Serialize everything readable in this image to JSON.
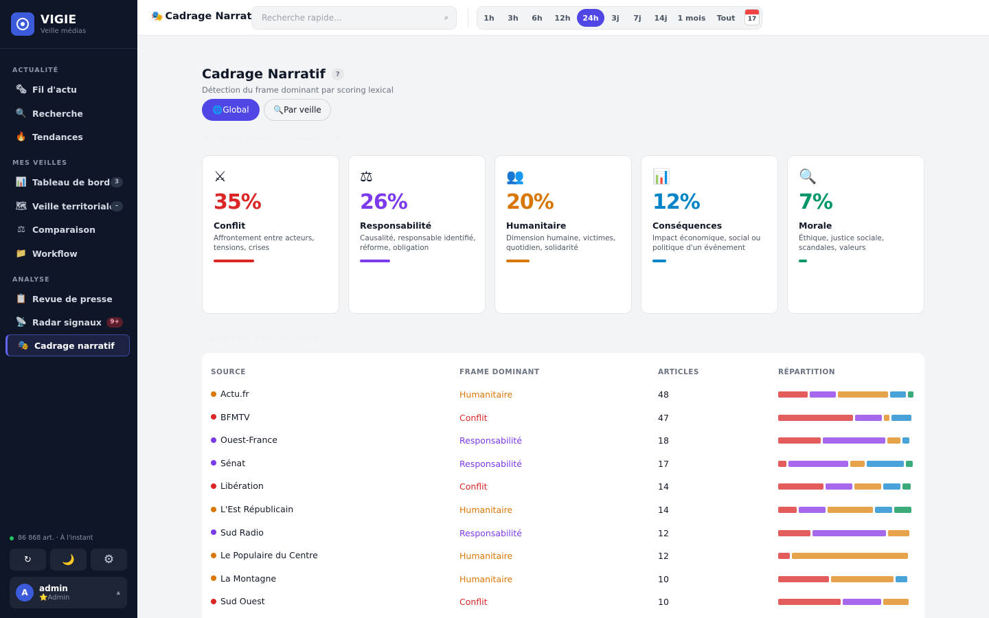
{
  "app": {
    "name": "VIGIE",
    "tagline": "Veille médias"
  },
  "sidebar": {
    "sections": [
      "ACTUALITÉ",
      "MES VEILLES",
      "ANALYSE"
    ],
    "items": [
      {
        "label": "Fil d'actu",
        "icon": "🗞"
      },
      {
        "label": "Recherche",
        "icon": "🔍"
      },
      {
        "label": "Tendances",
        "icon": "🔥"
      },
      {
        "label": "Tableau de bord",
        "icon": "📊",
        "badge": "3"
      },
      {
        "label": "Veille territoriale",
        "icon": "🗺",
        "badge": "–"
      },
      {
        "label": "Comparaison",
        "icon": "⚖"
      },
      {
        "label": "Workflow",
        "icon": "📁"
      },
      {
        "label": "Revue de presse",
        "icon": "📋"
      },
      {
        "label": "Radar signaux",
        "icon": "📡",
        "badge": "9+"
      },
      {
        "label": "Cadrage narratif",
        "icon": "🎭"
      }
    ],
    "status": "86 868 art. · À l'instant",
    "buttons": {
      "refresh": "↻",
      "theme": "🌙",
      "settings": "⚙"
    },
    "user": {
      "initial": "A",
      "name": "admin",
      "role": "⭐Admin"
    }
  },
  "topbar": {
    "title": "Cadrage Narratif",
    "search_placeholder": "Recherche rapide...",
    "periods": [
      "1h",
      "3h",
      "6h",
      "12h",
      "24h",
      "3j",
      "7j",
      "14j",
      "1 mois",
      "Tout"
    ],
    "active_period": "24h",
    "calendar_day": "17"
  },
  "page": {
    "title": "Cadrage Narratif",
    "help": "?",
    "subtitle": "Détection du frame dominant par scoring lexical",
    "mode_global": "🌐Global",
    "mode_veille": "🔍Par veille",
    "faint_note": "417 articles analysés sur 24 heures · 100",
    "table_section": "CADRAGE PAR SOURCE"
  },
  "frames": [
    {
      "name": "Conflit",
      "pct": "35%",
      "icon": "⚔",
      "desc": "Affrontement entre acteurs, tensions, crises",
      "color": "#dc2626",
      "bar": "#dc2626",
      "share": 0.35
    },
    {
      "name": "Responsabilité",
      "pct": "26%",
      "icon": "⚖",
      "desc": "Causalité, responsable identifié, réforme, obligation",
      "color": "#7c3aed",
      "bar": "#7c3aed",
      "share": 0.26
    },
    {
      "name": "Humanitaire",
      "pct": "20%",
      "icon": "👥",
      "desc": "Dimension humaine, victimes, quotidien, solidarité",
      "color": "#d97706",
      "bar": "#d97706",
      "share": 0.2
    },
    {
      "name": "Conséquences",
      "pct": "12%",
      "icon": "📊",
      "desc": "Impact économique, social ou politique d'un événement",
      "color": "#0284c7",
      "bar": "#0284c7",
      "share": 0.12
    },
    {
      "name": "Morale",
      "pct": "7%",
      "icon": "🔍",
      "desc": "Éthique, justice sociale, scandales, valeurs",
      "color": "#059669",
      "bar": "#059669",
      "share": 0.07
    }
  ],
  "table": {
    "headers": [
      "SOURCE",
      "FRAME DOMINANT",
      "ARTICLES",
      "RÉPARTITION"
    ],
    "segment_colors": [
      "#e45d5d",
      "#a668ec",
      "#e6a34c",
      "#4aa3d8",
      "#3aab79"
    ],
    "rows": [
      {
        "source": "Actu.fr",
        "frame": "Humainitaire",
        "frame_color": "#d97706",
        "articles": "48",
        "split": [
          0.22,
          0.2,
          0.38,
          0.12,
          0.04
        ]
      },
      {
        "source": "BFMTV",
        "frame": "Conflit",
        "frame_color": "#dc2626",
        "articles": "47",
        "split": [
          0.56,
          0.2,
          0.04,
          0.15,
          0
        ]
      },
      {
        "source": "Ouest-France",
        "frame": "Responsabilité",
        "frame_color": "#7c3aed",
        "articles": "18",
        "split": [
          0.32,
          0.47,
          0.1,
          0.05,
          0
        ]
      },
      {
        "source": "Sénat",
        "frame": "Responsabilité",
        "frame_color": "#7c3aed",
        "articles": "17",
        "split": [
          0.06,
          0.45,
          0.11,
          0.28,
          0.05
        ]
      },
      {
        "source": "Libération",
        "frame": "Conflit",
        "frame_color": "#dc2626",
        "articles": "14",
        "split": [
          0.34,
          0.2,
          0.2,
          0.13,
          0.06
        ]
      },
      {
        "source": "L'Est Républicain",
        "frame": "Humainitaire",
        "frame_color": "#d97706",
        "articles": "14",
        "split": [
          0.14,
          0.2,
          0.34,
          0.13,
          0.13
        ]
      },
      {
        "source": "Sud Radio",
        "frame": "Responsabilité",
        "frame_color": "#7c3aed",
        "articles": "12",
        "split": [
          0.24,
          0.55,
          0.16,
          0,
          0
        ]
      },
      {
        "source": "Le Populaire du Centre",
        "frame": "Humainitaire",
        "frame_color": "#d97706",
        "articles": "12",
        "split": [
          0.09,
          0,
          0.87,
          0,
          0
        ]
      },
      {
        "source": "La Montagne",
        "frame": "Humainitaire",
        "frame_color": "#d97706",
        "articles": "10",
        "split": [
          0.38,
          0,
          0.47,
          0.09,
          0
        ]
      },
      {
        "source": "Sud Ouest",
        "frame": "Conflit",
        "frame_color": "#dc2626",
        "articles": "10",
        "split": [
          0.47,
          0.29,
          0.19,
          0,
          0
        ]
      }
    ]
  }
}
